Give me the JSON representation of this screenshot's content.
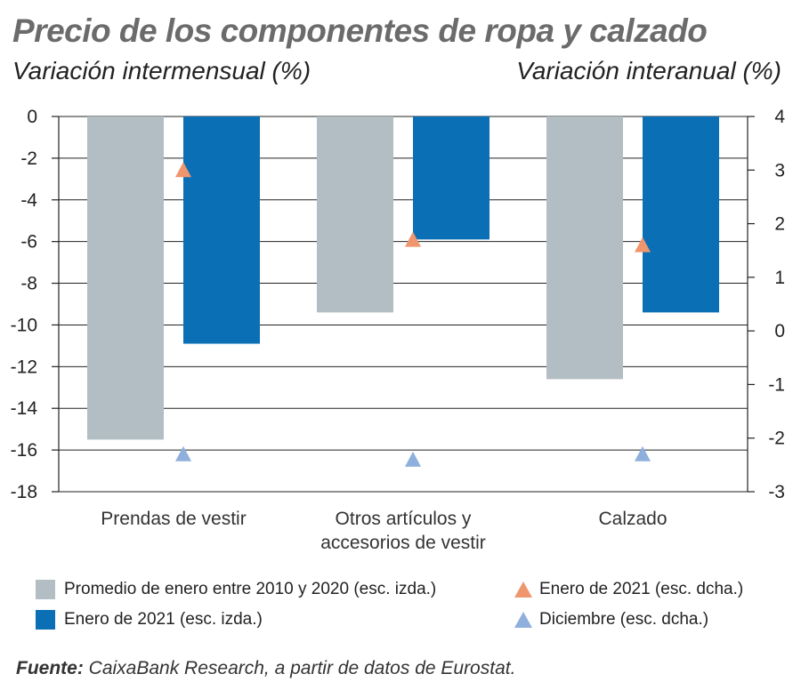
{
  "chart_data": {
    "type": "bar",
    "title": "Precio de los componentes de ropa y calzado",
    "ylabel_left": "Variación intermensual (%)",
    "ylabel_right": "Variación interanual (%)",
    "categories": [
      [
        "Prendas de vestir"
      ],
      [
        "Otros artículos y",
        "accesorios de vestir"
      ],
      [
        "Calzado"
      ]
    ],
    "ylim_left": [
      -18,
      0
    ],
    "yticks_left": [
      0,
      -2,
      -4,
      -6,
      -8,
      -10,
      -12,
      -14,
      -16,
      -18
    ],
    "ylim_right": [
      -3,
      4
    ],
    "yticks_right": [
      4,
      3,
      2,
      1,
      0,
      -1,
      -2,
      -3
    ],
    "grid": true,
    "series": [
      {
        "name": "Promedio de enero entre 2010 y 2020 (esc. izda.)",
        "kind": "bar",
        "axis": "left",
        "color": "#b2bec3",
        "values": [
          -15.5,
          -9.4,
          -12.6
        ]
      },
      {
        "name": "Enero de 2021 (esc. izda.)",
        "kind": "bar",
        "axis": "left",
        "color": "#0a6fb5",
        "values": [
          -10.9,
          -5.9,
          -9.4
        ]
      },
      {
        "name": "Enero de 2021 (esc. dcha.)",
        "kind": "marker",
        "axis": "right",
        "color": "#f0966e",
        "values": [
          3.0,
          1.7,
          1.6
        ]
      },
      {
        "name": "Diciembre (esc. dcha.)",
        "kind": "marker",
        "axis": "right",
        "color": "#8fb0dc",
        "values": [
          -2.3,
          -2.4,
          -2.3
        ]
      }
    ]
  },
  "legend": {
    "promedio": "Promedio de enero entre 2010 y 2020 (esc. izda.)",
    "enero_izda": "Enero de 2021 (esc. izda.)",
    "enero_dcha": "Enero de 2021 (esc. dcha.)",
    "diciembre": "Diciembre (esc. dcha.)"
  },
  "source": {
    "label": "Fuente:",
    "text": " CaixaBank Research, a partir de datos de Eurostat."
  }
}
